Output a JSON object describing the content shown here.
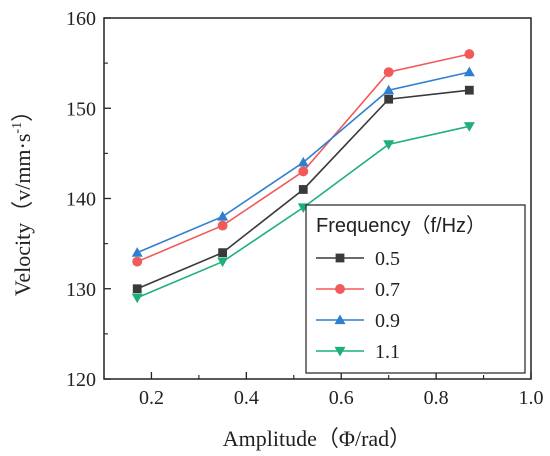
{
  "chart_data": {
    "type": "line",
    "xlabel": "Amplitude（Φ/rad）",
    "ylabel": "Velocity（v/mm·s",
    "ylabel_sup": "-1",
    "ylabel_close": "）",
    "xlim": [
      0.1,
      1.0
    ],
    "ylim": [
      120,
      160
    ],
    "x_ticks": [
      0.2,
      0.4,
      0.6,
      0.8,
      1.0
    ],
    "x_tick_labels": [
      "0.2",
      "0.4",
      "0.6",
      "0.8",
      "1.0"
    ],
    "y_ticks": [
      120,
      130,
      140,
      150,
      160
    ],
    "y_tick_labels": [
      "120",
      "130",
      "140",
      "150",
      "160"
    ],
    "grid": false,
    "legend": {
      "title": "Frequency（f/Hz）",
      "placement": "bottom-right"
    },
    "x": [
      0.17,
      0.35,
      0.52,
      0.7,
      0.87
    ],
    "series": [
      {
        "name": "0.5",
        "color": "#3a3a3a",
        "marker": "square",
        "values": [
          130,
          134,
          141,
          151,
          152
        ]
      },
      {
        "name": "0.7",
        "color": "#f25a5a",
        "marker": "circle",
        "values": [
          133,
          137,
          143,
          154,
          156
        ]
      },
      {
        "name": "0.9",
        "color": "#2f7fd1",
        "marker": "triangle-up",
        "values": [
          134,
          138,
          144,
          152,
          154
        ]
      },
      {
        "name": "1.1",
        "color": "#1fb07a",
        "marker": "triangle-down",
        "values": [
          129,
          133,
          139,
          146,
          148
        ]
      }
    ]
  }
}
